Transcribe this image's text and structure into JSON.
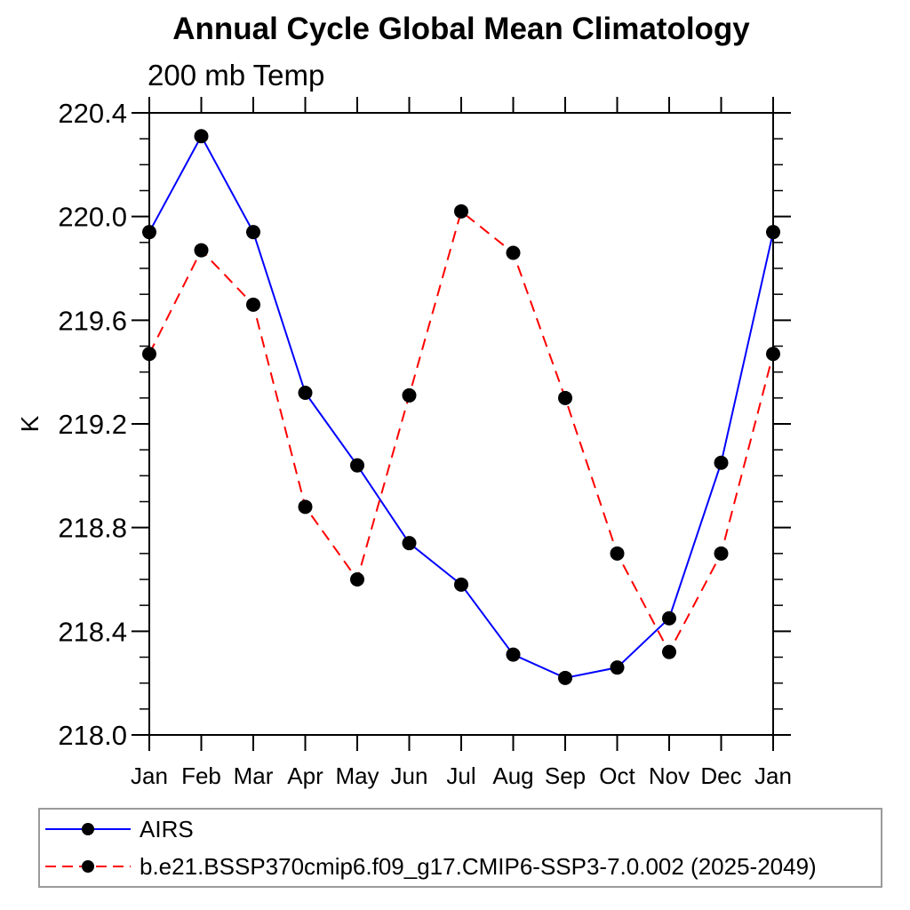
{
  "chart_data": {
    "type": "line",
    "title": "Annual Cycle Global Mean Climatology",
    "subtitle": "200 mb Temp",
    "ylabel": "K",
    "xlabel": "",
    "categories": [
      "Jan",
      "Feb",
      "Mar",
      "Apr",
      "May",
      "Jun",
      "Jul",
      "Aug",
      "Sep",
      "Oct",
      "Nov",
      "Dec",
      "Jan"
    ],
    "series": [
      {
        "name": "AIRS",
        "color": "#0000ff",
        "line_style": "solid",
        "marker": "black-dot",
        "values": [
          219.94,
          220.31,
          219.94,
          219.32,
          219.04,
          218.74,
          218.58,
          218.31,
          218.22,
          218.26,
          218.45,
          219.05,
          219.94
        ]
      },
      {
        "name": "b.e21.BSSP370cmip6.f09_g17.CMIP6-SSP3-7.0.002 (2025-2049)",
        "color": "#ff0000",
        "line_style": "dashed",
        "marker": "black-dot",
        "values": [
          219.47,
          219.87,
          219.66,
          218.88,
          218.6,
          219.31,
          220.02,
          219.86,
          219.3,
          218.7,
          218.32,
          218.7,
          219.47
        ]
      }
    ],
    "ylim": [
      218.0,
      220.4
    ],
    "ytick_major_step": 0.4,
    "ytick_minor_step": 0.1,
    "ytick_labels": [
      "218.0",
      "218.4",
      "218.8",
      "219.2",
      "219.6",
      "220.0",
      "220.4"
    ],
    "grid": false,
    "legend_position": "bottom-left-box",
    "marker_color": "#000000",
    "axis_color": "#000000"
  }
}
